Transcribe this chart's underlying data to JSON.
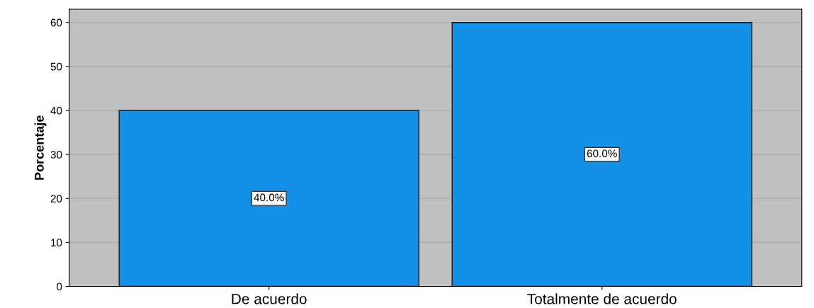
{
  "chart_data": {
    "type": "bar",
    "ylabel": "Porcentaje",
    "categories": [
      "De acuerdo",
      "Totalmente de acuerdo"
    ],
    "values": [
      40,
      60
    ],
    "value_labels": [
      "40.0%",
      "60.0%"
    ],
    "color": "#1490e8",
    "ylim": [
      0,
      63
    ],
    "yticks": [
      0,
      10,
      20,
      30,
      40,
      50,
      60
    ],
    "grid": "y"
  }
}
